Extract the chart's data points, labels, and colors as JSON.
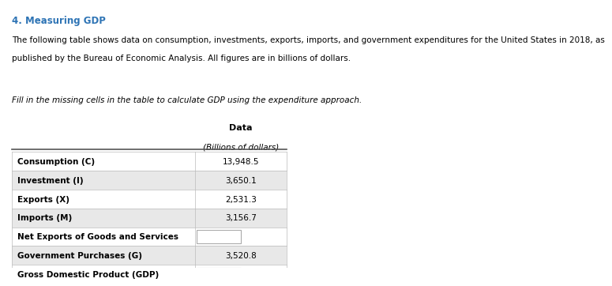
{
  "title": "4. Measuring GDP",
  "paragraph1": "The following table shows data on consumption, investments, exports, imports, and government expenditures for the United States in 2018, as",
  "paragraph2": "published by the Bureau of Economic Analysis. All figures are in billions of dollars.",
  "italic_text": "Fill in the missing cells in the table to calculate GDP using the expenditure approach.",
  "col_header1": "Data",
  "col_header2": "(Billions of dollars)",
  "rows": [
    {
      "label": "Consumption (C)",
      "value": "13,948.5",
      "blank": false,
      "shaded": false
    },
    {
      "label": "Investment (I)",
      "value": "3,650.1",
      "blank": false,
      "shaded": true
    },
    {
      "label": "Exports (X)",
      "value": "2,531.3",
      "blank": false,
      "shaded": false
    },
    {
      "label": "Imports (M)",
      "value": "3,156.7",
      "blank": false,
      "shaded": true
    },
    {
      "label": "Net Exports of Goods and Services",
      "value": "",
      "blank": true,
      "shaded": false
    },
    {
      "label": "Government Purchases (G)",
      "value": "3,520.8",
      "blank": false,
      "shaded": true
    },
    {
      "label": "Gross Domestic Product (GDP)",
      "value": "",
      "blank": true,
      "shaded": false
    }
  ],
  "title_color": "#2E74B5",
  "shaded_color": "#E8E8E8",
  "white_color": "#FFFFFF",
  "border_color": "#999999",
  "text_color": "#000000",
  "blank_box_color": "#FFFFFF",
  "blank_box_border": "#AAAAAA"
}
